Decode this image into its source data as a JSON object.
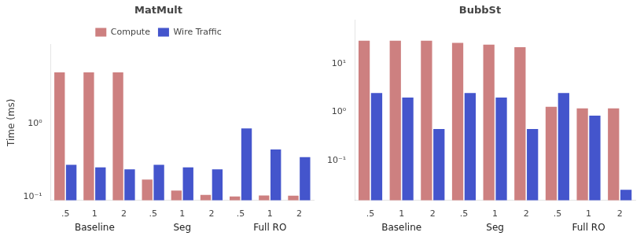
{
  "chart_data": [
    {
      "type": "bar",
      "title": "MatMult",
      "categories": [
        ".5",
        "1",
        "2",
        ".5",
        "1",
        "2",
        ".5",
        "1",
        "2"
      ],
      "annotations": [
        "Baseline",
        "Seg",
        "Full RO"
      ],
      "series": [
        {
          "name": "Compute",
          "color": "#cd8080",
          "values": [
            5.0,
            5.0,
            5.0,
            0.17,
            0.12,
            0.105,
            0.1,
            0.103,
            0.102
          ]
        },
        {
          "name": "Wire Traffic",
          "color": "#4455cc",
          "values": [
            0.27,
            0.25,
            0.235,
            0.27,
            0.25,
            0.235,
            0.85,
            0.44,
            0.345
          ]
        }
      ],
      "ylabel": "Time (ms)",
      "log": "y",
      "ylim": [
        0.088,
        12.0
      ],
      "yticks": [
        {
          "value": 0.1,
          "label": "10⁻¹"
        },
        {
          "value": 1.0,
          "label": "10⁰"
        }
      ],
      "grid": false,
      "legend": "top"
    },
    {
      "type": "bar",
      "title": "BubbSt",
      "categories": [
        ".5",
        "1",
        "2",
        ".5",
        "1",
        "2",
        ".5",
        "1",
        "2"
      ],
      "annotations": [
        "Baseline",
        "Seg",
        "Full RO"
      ],
      "series": [
        {
          "name": "Compute",
          "color": "#cd8080",
          "values": [
            30.0,
            30.0,
            30.0,
            27.0,
            25.0,
            22.0,
            1.3,
            1.2,
            1.2
          ]
        },
        {
          "name": "Wire Traffic",
          "color": "#4455cc",
          "values": [
            2.5,
            2.0,
            0.45,
            2.5,
            2.0,
            0.45,
            2.5,
            0.85,
            0.025
          ]
        }
      ],
      "log": "y",
      "ylim": [
        0.015,
        80.0
      ],
      "yticks": [
        {
          "value": 0.1,
          "label": "10⁻¹"
        },
        {
          "value": 1.0,
          "label": "10⁰"
        },
        {
          "value": 10.0,
          "label": "10¹"
        }
      ],
      "grid": false
    }
  ]
}
